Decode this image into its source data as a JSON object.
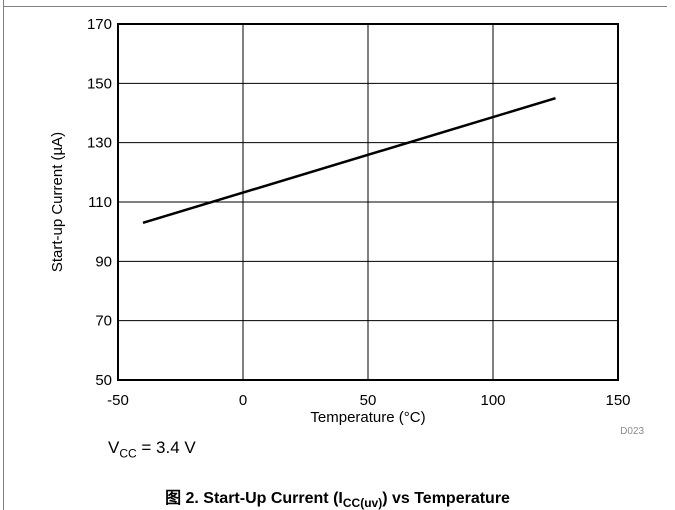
{
  "chart_data": {
    "type": "line",
    "xlabel": "Temperature (°C)",
    "ylabel": "Start-up Current (µA)",
    "xlim": [
      -50,
      150
    ],
    "ylim": [
      50,
      170
    ],
    "xticks": [
      -50,
      0,
      50,
      100,
      150
    ],
    "yticks": [
      50,
      70,
      90,
      110,
      130,
      150,
      170
    ],
    "grid": true,
    "series": [
      {
        "x": [
          -40,
          125
        ],
        "values": [
          103,
          145
        ]
      }
    ],
    "condition": {
      "symbol": "V",
      "subscript": "CC",
      "value": " = 3.4 V"
    },
    "figure_code": "D023",
    "caption": {
      "prefix": "图 2. Start-Up Current (I",
      "subscript": "CC(uv)",
      "suffix": ") vs Temperature"
    },
    "colors": {
      "line": "#000000",
      "grid": "#000000"
    }
  }
}
